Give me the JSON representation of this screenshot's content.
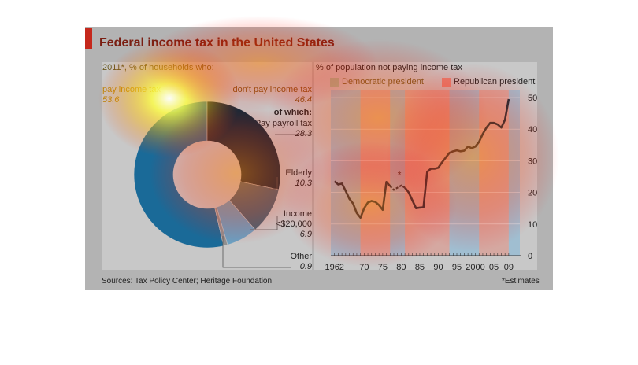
{
  "title": "Federal income tax in the United States",
  "source": "Sources: Tax Policy Center; Heritage Foundation",
  "estimates_note": "*Estimates",
  "colors": {
    "accent": "#c5281c",
    "line": "#0d2a3a",
    "democratic": "#7fb6d8",
    "republican": "#e2877a"
  },
  "chart_data": [
    {
      "type": "pie",
      "title": "2011*, % of households who:",
      "slices": [
        {
          "label": "pay income tax",
          "value": 53.6,
          "color": "#1a6a98"
        },
        {
          "label": "Pay payroll tax",
          "value": 28.3,
          "color": "#0d2a3a"
        },
        {
          "label": "Elderly",
          "value": 10.3,
          "color": "#466575"
        },
        {
          "label": "Income <$20,000",
          "value": 6.9,
          "color": "#6aa0c2"
        },
        {
          "label": "Other",
          "value": 0.9,
          "color": "#909090"
        }
      ],
      "annotations": {
        "pay_label": "pay income tax",
        "pay_value": "53.6",
        "dont_label": "don't pay income tax",
        "dont_value": "46.4",
        "of_which": "of which:",
        "payroll_label": "Pay payroll tax",
        "payroll_value": "28.3",
        "elderly_label": "Elderly",
        "elderly_value": "10.3",
        "income_label1": "Income",
        "income_label2": "<$20,000",
        "income_value": "6.9",
        "other_label": "Other",
        "other_value": "0.9"
      }
    },
    {
      "type": "line",
      "title": "% of population not paying income tax",
      "legend": [
        {
          "name": "Democratic president",
          "color": "#7fb6d8"
        },
        {
          "name": "Republican president",
          "color": "#e2877a"
        }
      ],
      "legend_position": "top",
      "xlim": [
        1961,
        2012
      ],
      "ylim": [
        0,
        50
      ],
      "yticks": [
        0,
        10,
        20,
        30,
        40,
        50
      ],
      "xtick_labels": [
        {
          "year": 1962,
          "label": "1962"
        },
        {
          "year": 1970,
          "label": "70"
        },
        {
          "year": 1975,
          "label": "75"
        },
        {
          "year": 1980,
          "label": "80"
        },
        {
          "year": 1985,
          "label": "85"
        },
        {
          "year": 1990,
          "label": "90"
        },
        {
          "year": 1995,
          "label": "95"
        },
        {
          "year": 2000,
          "label": "2000"
        },
        {
          "year": 2005,
          "label": "05"
        },
        {
          "year": 2009,
          "label": "09"
        }
      ],
      "periods": [
        {
          "start": 1961,
          "end": 1969,
          "party": "democratic"
        },
        {
          "start": 1969,
          "end": 1977,
          "party": "republican"
        },
        {
          "start": 1977,
          "end": 1981,
          "party": "democratic"
        },
        {
          "start": 1981,
          "end": 1993,
          "party": "republican"
        },
        {
          "start": 1993,
          "end": 2001,
          "party": "democratic"
        },
        {
          "start": 2001,
          "end": 2009,
          "party": "republican"
        },
        {
          "start": 2009,
          "end": 2012,
          "party": "democratic"
        }
      ],
      "series": [
        {
          "values": [
            [
              1962,
              23.5
            ],
            [
              1963,
              22.5
            ],
            [
              1964,
              22.8
            ],
            [
              1965,
              20.5
            ],
            [
              1966,
              18.0
            ],
            [
              1967,
              16.5
            ],
            [
              1968,
              13.5
            ],
            [
              1969,
              12.0
            ],
            [
              1970,
              15.0
            ],
            [
              1971,
              16.8
            ],
            [
              1972,
              17.3
            ],
            [
              1973,
              17.0
            ],
            [
              1974,
              16.0
            ],
            [
              1975,
              14.5
            ],
            [
              1976,
              23.3
            ],
            [
              1977,
              22.0
            ],
            [
              1978,
              20.8
            ],
            [
              1979,
              21.5
            ],
            [
              1980,
              22.2
            ],
            [
              1981,
              21.5
            ],
            [
              1982,
              20.0
            ],
            [
              1983,
              17.5
            ],
            [
              1984,
              15.0
            ],
            [
              1985,
              15.2
            ],
            [
              1986,
              15.3
            ],
            [
              1987,
              26.5
            ],
            [
              1988,
              27.5
            ],
            [
              1989,
              27.5
            ],
            [
              1990,
              27.8
            ],
            [
              1991,
              29.5
            ],
            [
              1992,
              31.0
            ],
            [
              1993,
              32.5
            ],
            [
              1994,
              33.0
            ],
            [
              1995,
              33.3
            ],
            [
              1996,
              33.0
            ],
            [
              1997,
              33.2
            ],
            [
              1998,
              34.5
            ],
            [
              1999,
              34.0
            ],
            [
              2000,
              34.5
            ],
            [
              2001,
              36.0
            ],
            [
              2002,
              38.5
            ],
            [
              2003,
              40.5
            ],
            [
              2004,
              42.0
            ],
            [
              2005,
              42.0
            ],
            [
              2006,
              41.5
            ],
            [
              2007,
              40.5
            ],
            [
              2008,
              43.0
            ],
            [
              2009,
              49.5
            ]
          ],
          "dashed_range": [
            1977,
            1981
          ],
          "dashed_marker": "*"
        }
      ]
    }
  ]
}
